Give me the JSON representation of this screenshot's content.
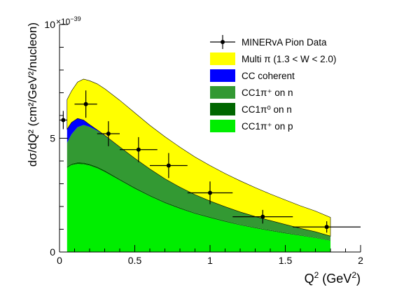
{
  "chart_data": {
    "type": "area",
    "xlabel": "Q",
    "xlabel_sup": "2",
    "xlabel_unit_open": " (GeV",
    "xlabel_unit_sup": "2",
    "xlabel_unit_close": ")",
    "ylabel": "dσ/dQ² (cm²/GeV²/nucleon)",
    "y_multiplier_base": "×10",
    "y_multiplier_exp": "−39",
    "xlim": [
      0,
      2
    ],
    "ylim": [
      0,
      10.0
    ],
    "x_ticks": [
      "0",
      "0.5",
      "1",
      "1.5",
      "2"
    ],
    "x_tick_values": [
      0,
      0.5,
      1,
      1.5,
      2
    ],
    "y_ticks": [
      "0",
      "5",
      "10"
    ],
    "y_tick_values": [
      0,
      5,
      10
    ],
    "grid": false,
    "legend_position": "top-right",
    "legend": [
      {
        "label": "MINERvA Pion Data",
        "marker": "data"
      },
      {
        "label": "Multi π (1.3 < W < 2.0)",
        "marker": "yellow"
      },
      {
        "label": "CC coherent",
        "marker": "blue"
      },
      {
        "label": "CC1π⁺ on n",
        "marker": "darkgreen"
      },
      {
        "label": "CC1π⁰ on n",
        "marker": "verydarkgreen"
      },
      {
        "label": "CC1π⁺ on p",
        "marker": "lightgreen"
      }
    ],
    "colors": {
      "yellow": "#ffff00",
      "blue": "#0000ff",
      "darkgreen": "#339933",
      "verydarkgreen": "#006600",
      "lightgreen": "#00ee00"
    },
    "x": [
      0.05,
      0.08,
      0.12,
      0.16,
      0.2,
      0.25,
      0.3,
      0.4,
      0.5,
      0.6,
      0.7,
      0.8,
      0.9,
      1.0,
      1.1,
      1.2,
      1.3,
      1.4,
      1.5,
      1.6,
      1.7,
      1.8
    ],
    "series": [
      {
        "name": "CC1π⁺ on p",
        "values": [
          3.7,
          3.82,
          3.87,
          3.86,
          3.8,
          3.68,
          3.52,
          3.15,
          2.78,
          2.45,
          2.15,
          1.9,
          1.68,
          1.5,
          1.33,
          1.18,
          1.05,
          0.93,
          0.82,
          0.72,
          0.62,
          0.5
        ]
      },
      {
        "name": "CC1π⁰ on n",
        "values": [
          0.05,
          0.06,
          0.07,
          0.07,
          0.07,
          0.07,
          0.07,
          0.06,
          0.06,
          0.05,
          0.05,
          0.05,
          0.04,
          0.04,
          0.04,
          0.03,
          0.03,
          0.03,
          0.03,
          0.02,
          0.02,
          0.02
        ]
      },
      {
        "name": "CC1π⁺ on n",
        "values": [
          1.05,
          1.3,
          1.55,
          1.65,
          1.63,
          1.58,
          1.52,
          1.4,
          1.28,
          1.15,
          1.02,
          0.9,
          0.8,
          0.7,
          0.62,
          0.55,
          0.48,
          0.42,
          0.36,
          0.3,
          0.25,
          0.18
        ]
      },
      {
        "name": "CC coherent",
        "values": [
          0.6,
          0.52,
          0.38,
          0.22,
          0.1,
          0.04,
          0.02,
          0.01,
          0.0,
          0.0,
          0.0,
          0.0,
          0.0,
          0.0,
          0.0,
          0.0,
          0.0,
          0.0,
          0.0,
          0.0,
          0.0,
          0.0
        ]
      },
      {
        "name": "Multi π (1.3 < W < 2.0)",
        "values": [
          1.3,
          1.38,
          1.6,
          1.8,
          1.93,
          2.02,
          2.05,
          2.05,
          2.0,
          1.92,
          1.85,
          1.76,
          1.66,
          1.56,
          1.46,
          1.37,
          1.27,
          1.17,
          1.08,
          0.99,
          0.91,
          0.82
        ]
      }
    ],
    "data_points": [
      {
        "x": 0.025,
        "xerr": 0.025,
        "y": 5.8,
        "yerr": 0.4
      },
      {
        "x": 0.175,
        "xerr": 0.075,
        "y": 6.5,
        "yerr": 0.6
      },
      {
        "x": 0.325,
        "xerr": 0.075,
        "y": 5.2,
        "yerr": 0.55
      },
      {
        "x": 0.525,
        "xerr": 0.125,
        "y": 4.5,
        "yerr": 0.55
      },
      {
        "x": 0.725,
        "xerr": 0.125,
        "y": 3.8,
        "yerr": 0.55
      },
      {
        "x": 1.0,
        "xerr": 0.15,
        "y": 2.6,
        "yerr": 0.5
      },
      {
        "x": 1.35,
        "xerr": 0.2,
        "y": 1.55,
        "yerr": 0.3
      },
      {
        "x": 1.775,
        "xerr": 0.225,
        "y": 1.1,
        "yerr": 0.25
      }
    ]
  }
}
